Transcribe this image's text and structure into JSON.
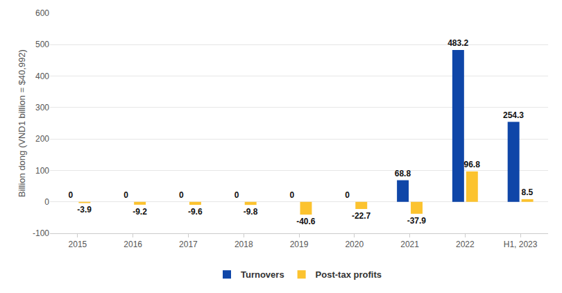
{
  "chart_data": {
    "type": "bar",
    "y_label": "Billion dong (VND1 billion = $40,992)",
    "categories": [
      "2015",
      "2016",
      "2017",
      "2018",
      "2019",
      "2020",
      "2021",
      "2022",
      "H1, 2023"
    ],
    "series": [
      {
        "name": "Turnovers",
        "color": "#0f46a8",
        "values": [
          0,
          0,
          0,
          0,
          0,
          0,
          68.8,
          483.2,
          254.3
        ]
      },
      {
        "name": "Post-tax profits",
        "color": "#fcc32f",
        "values": [
          -3.9,
          -9.2,
          -9.6,
          -9.8,
          -40.6,
          -22.7,
          -37.9,
          96.8,
          8.5
        ]
      }
    ],
    "ylim": [
      -100,
      600
    ],
    "yticks": [
      -100,
      0,
      100,
      200,
      300,
      400,
      500,
      600
    ],
    "grid": true,
    "legend": "bottom",
    "data_labels": true
  }
}
